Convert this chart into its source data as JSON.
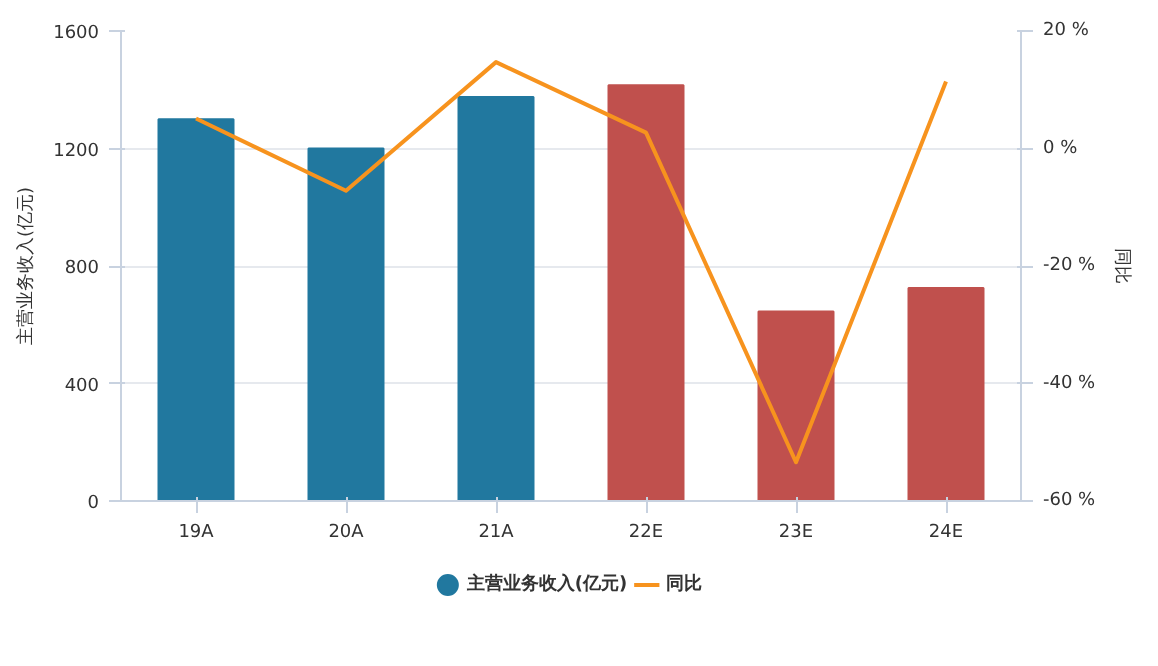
{
  "chart_data": {
    "type": "bar",
    "categories": [
      "19A",
      "20A",
      "21A",
      "22E",
      "23E",
      "24E"
    ],
    "ylabel": "主营业务收入(亿元)",
    "y2label": "同比",
    "ylim": [
      0,
      1600
    ],
    "yticks": [
      0,
      400,
      800,
      1200,
      1600
    ],
    "y2lim": [
      -60,
      20
    ],
    "y2ticks": [
      {
        "value": -60,
        "label": "-60 %"
      },
      {
        "value": -40,
        "label": "-40 %"
      },
      {
        "value": -20,
        "label": "-20 %"
      },
      {
        "value": 0,
        "label": "0 %"
      },
      {
        "value": 20,
        "label": "20 %"
      }
    ],
    "grid": "y",
    "legend": "bottom",
    "series": [
      {
        "name": "主营业务收入(亿元)",
        "color": "#21789f",
        "colors": [
          "#21789f",
          "#21789f",
          "#21789f",
          "#c0504d",
          "#c0504d",
          "#c0504d"
        ],
        "values": [
          1300,
          1200,
          1375,
          1415,
          645,
          725
        ]
      },
      {
        "name": "同比",
        "type": "line",
        "axis": "y2",
        "color": "#f7931e",
        "values": [
          5.1,
          -7.2,
          14.7,
          2.7,
          -53.4,
          11.4
        ]
      }
    ]
  }
}
